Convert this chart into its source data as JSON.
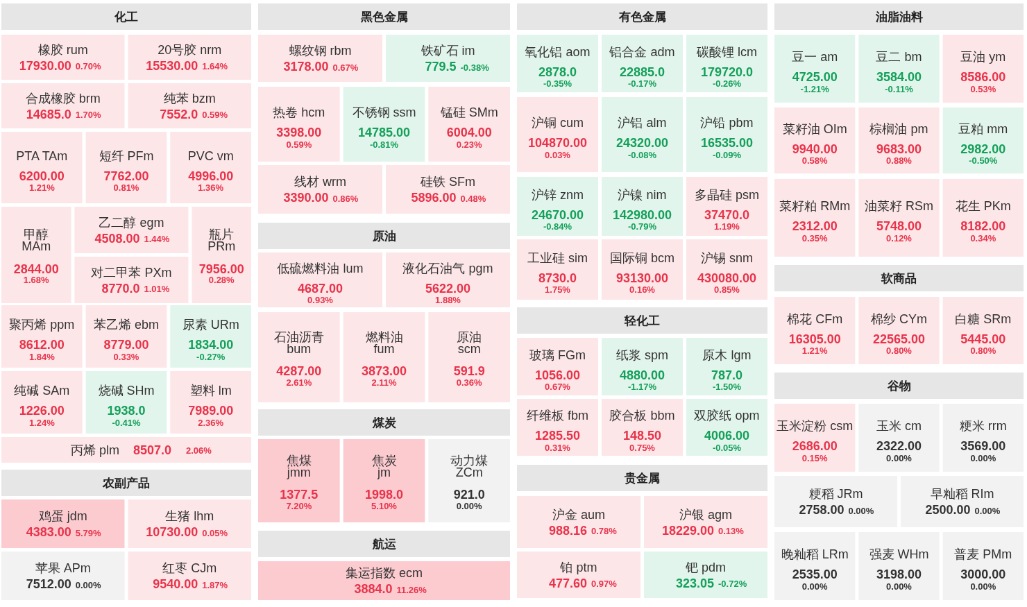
{
  "chart_data": [
    {
      "type": "other",
      "title": "化工",
      "categories": [
        "橡胶 rum",
        "20号胶 nrm",
        "合成橡胶 brm",
        "纯苯 bzm",
        "PTA TAm",
        "短纤 PFm",
        "PVC vm",
        "甲醇 MAm",
        "乙二醇 egm",
        "对二甲苯 PXm",
        "瓶片 PRm",
        "聚丙烯 ppm",
        "苯乙烯 ebm",
        "尿素 URm",
        "纯碱 SAm",
        "烧碱 SHm",
        "塑料 lm",
        "丙烯 plm"
      ],
      "series": [
        {
          "colors": [
            "#fde6e8",
            "#fde6e8",
            "#fde6e8",
            "#fde6e8",
            "#fde6e8",
            "#fde6e8",
            "#fde6e8",
            "#fde6e8",
            "#fde6e8",
            "#fde6e8",
            "#fde6e8",
            "#fde6e8",
            "#fde6e8",
            "#e2f5ec",
            "#fde6e8",
            "#e2f5ec",
            "#fde6e8",
            "#fde6e8"
          ],
          "values": [
            17930.0,
            15530.0,
            14685.0,
            7552.0,
            6200.0,
            7762.0,
            4996.0,
            2844.0,
            4508.0,
            8770.0,
            7956.0,
            8612.0,
            8779.0,
            1834.0,
            1226.0,
            1938.0,
            7989.0,
            8507.0
          ],
          "value_labels": [
            "17930.00",
            "15530.00",
            "14685.0",
            "7552.0",
            "6200.00",
            "7762.00",
            "4996.00",
            "2844.00",
            "4508.00",
            "8770.0",
            "7956.00",
            "8612.00",
            "8779.00",
            "1834.00",
            "1226.00",
            "1938.0",
            "7989.00",
            "8507.0"
          ]
        },
        {
          "colors": [
            "#e8334a",
            "#e8334a",
            "#e8334a",
            "#e8334a",
            "#e8334a",
            "#e8334a",
            "#e8334a",
            "#e8334a",
            "#e8334a",
            "#e8334a",
            "#e8334a",
            "#e8334a",
            "#e8334a",
            "#14a05a",
            "#e8334a",
            "#14a05a",
            "#e8334a",
            "#e8334a"
          ],
          "values": [
            0.7,
            1.64,
            1.7,
            0.59,
            1.21,
            0.81,
            1.36,
            1.68,
            1.44,
            1.01,
            0.28,
            1.84,
            0.33,
            -0.27,
            1.24,
            -0.41,
            2.36,
            2.06
          ],
          "value_labels": [
            "0.70%",
            "1.64%",
            "1.70%",
            "0.59%",
            "1.21%",
            "0.81%",
            "1.36%",
            "1.68%",
            "1.44%",
            "1.01%",
            "0.28%",
            "1.84%",
            "0.33%",
            "-0.27%",
            "1.24%",
            "-0.41%",
            "2.36%",
            "2.06%"
          ]
        }
      ]
    },
    {
      "type": "other",
      "title": "农副产品",
      "categories": [
        "鸡蛋 jdm",
        "生猪 lhm",
        "苹果 APm",
        "红枣 CJm"
      ],
      "series": [
        {
          "colors": [
            "#fccbd0",
            "#fde6e8",
            "#f2f2f2",
            "#fde6e8"
          ],
          "values": [
            4383.0,
            10730.0,
            7512.0,
            9540.0
          ],
          "value_labels": [
            "4383.00",
            "10730.00",
            "7512.00",
            "9540.00"
          ]
        },
        {
          "colors": [
            "#e8334a",
            "#e8334a",
            "#333333",
            "#e8334a"
          ],
          "values": [
            5.79,
            0.05,
            0.0,
            1.87
          ],
          "value_labels": [
            "5.79%",
            "0.05%",
            "0.00%",
            "1.87%"
          ]
        }
      ]
    },
    {
      "type": "other",
      "title": "黑色金属",
      "categories": [
        "螺纹钢 rbm",
        "铁矿石 im",
        "热卷 hcm",
        "不锈钢 ssm",
        "锰硅 SMm",
        "线材 wrm",
        "硅铁 SFm"
      ],
      "series": [
        {
          "colors": [
            "#fde6e8",
            "#e2f5ec",
            "#fde6e8",
            "#e2f5ec",
            "#fde6e8",
            "#fde6e8",
            "#fde6e8"
          ],
          "values": [
            3178.0,
            779.5,
            3398.0,
            14785.0,
            6004.0,
            3390.0,
            5896.0
          ],
          "value_labels": [
            "3178.00",
            "779.5",
            "3398.00",
            "14785.00",
            "6004.00",
            "3390.00",
            "5896.00"
          ]
        },
        {
          "colors": [
            "#e8334a",
            "#14a05a",
            "#e8334a",
            "#14a05a",
            "#e8334a",
            "#e8334a",
            "#e8334a"
          ],
          "values": [
            0.67,
            -0.38,
            0.59,
            -0.81,
            0.23,
            0.86,
            0.48
          ],
          "value_labels": [
            "0.67%",
            "-0.38%",
            "0.59%",
            "-0.81%",
            "0.23%",
            "0.86%",
            "0.48%"
          ]
        }
      ]
    },
    {
      "type": "other",
      "title": "原油",
      "categories": [
        "低硫燃料油 lum",
        "液化石油气 pgm",
        "石油沥青 bum",
        "燃料油 fum",
        "原油 scm"
      ],
      "series": [
        {
          "colors": [
            "#fde6e8",
            "#fde6e8",
            "#fde6e8",
            "#fde6e8",
            "#fde6e8"
          ],
          "values": [
            4687.0,
            5622.0,
            4287.0,
            3873.0,
            591.9
          ],
          "value_labels": [
            "4687.00",
            "5622.00",
            "4287.00",
            "3873.00",
            "591.9"
          ]
        },
        {
          "colors": [
            "#e8334a",
            "#e8334a",
            "#e8334a",
            "#e8334a",
            "#e8334a"
          ],
          "values": [
            0.93,
            1.88,
            2.61,
            2.11,
            0.36
          ],
          "value_labels": [
            "0.93%",
            "1.88%",
            "2.61%",
            "2.11%",
            "0.36%"
          ]
        }
      ]
    },
    {
      "type": "other",
      "title": "煤炭",
      "categories": [
        "焦煤 jmm",
        "焦炭 jm",
        "动力煤 ZCm"
      ],
      "series": [
        {
          "colors": [
            "#fccbd0",
            "#fccbd0",
            "#f2f2f2"
          ],
          "values": [
            1377.5,
            1998.0,
            921.0
          ],
          "value_labels": [
            "1377.5",
            "1998.0",
            "921.0"
          ]
        },
        {
          "colors": [
            "#e8334a",
            "#e8334a",
            "#333333"
          ],
          "values": [
            7.2,
            5.1,
            0.0
          ],
          "value_labels": [
            "7.20%",
            "5.10%",
            "0.00%"
          ]
        }
      ]
    },
    {
      "type": "other",
      "title": "航运",
      "categories": [
        "集运指数 ecm"
      ],
      "series": [
        {
          "colors": [
            "#fccbd0"
          ],
          "values": [
            3884.0
          ],
          "value_labels": [
            "3884.0"
          ]
        },
        {
          "colors": [
            "#e8334a"
          ],
          "values": [
            11.26
          ],
          "value_labels": [
            "11.26%"
          ]
        }
      ]
    },
    {
      "type": "other",
      "title": "有色金属",
      "categories": [
        "氧化铝 aom",
        "铝合金 adm",
        "碳酸锂 lcm",
        "沪铜 cum",
        "沪铝 alm",
        "沪铅 pbm",
        "沪锌 znm",
        "沪镍 nim",
        "多晶硅 psm",
        "工业硅 sim",
        "国际铜 bcm",
        "沪锡 snm"
      ],
      "series": [
        {
          "colors": [
            "#e2f5ec",
            "#e2f5ec",
            "#e2f5ec",
            "#fde6e8",
            "#e2f5ec",
            "#e2f5ec",
            "#e2f5ec",
            "#e2f5ec",
            "#fde6e8",
            "#fde6e8",
            "#fde6e8",
            "#fde6e8"
          ],
          "values": [
            2878.0,
            22885.0,
            179720.0,
            104870.0,
            24320.0,
            16535.0,
            24670.0,
            142980.0,
            37470.0,
            8730.0,
            93130.0,
            430080.0
          ],
          "value_labels": [
            "2878.0",
            "22885.0",
            "179720.0",
            "104870.00",
            "24320.00",
            "16535.00",
            "24670.00",
            "142980.00",
            "37470.0",
            "8730.0",
            "93130.00",
            "430080.00"
          ]
        },
        {
          "colors": [
            "#14a05a",
            "#14a05a",
            "#14a05a",
            "#e8334a",
            "#14a05a",
            "#14a05a",
            "#14a05a",
            "#14a05a",
            "#e8334a",
            "#e8334a",
            "#e8334a",
            "#e8334a"
          ],
          "values": [
            -0.35,
            -0.17,
            -0.26,
            0.03,
            -0.08,
            -0.09,
            -0.84,
            -0.79,
            1.19,
            1.75,
            0.16,
            0.85
          ],
          "value_labels": [
            "-0.35%",
            "-0.17%",
            "-0.26%",
            "0.03%",
            "-0.08%",
            "-0.09%",
            "-0.84%",
            "-0.79%",
            "1.19%",
            "1.75%",
            "0.16%",
            "0.85%"
          ]
        }
      ]
    },
    {
      "type": "other",
      "title": "轻化工",
      "categories": [
        "玻璃 FGm",
        "纸浆 spm",
        "原木 lgm",
        "纤维板 fbm",
        "胶合板 bbm",
        "双胶纸 opm"
      ],
      "series": [
        {
          "colors": [
            "#fde6e8",
            "#e2f5ec",
            "#e2f5ec",
            "#fde6e8",
            "#fde6e8",
            "#e2f5ec"
          ],
          "values": [
            1056.0,
            4880.0,
            787.0,
            1285.5,
            148.5,
            4006.0
          ],
          "value_labels": [
            "1056.00",
            "4880.00",
            "787.0",
            "1285.50",
            "148.50",
            "4006.00"
          ]
        },
        {
          "colors": [
            "#e8334a",
            "#14a05a",
            "#14a05a",
            "#e8334a",
            "#e8334a",
            "#14a05a"
          ],
          "values": [
            0.67,
            -1.17,
            -1.5,
            0.31,
            0.75,
            -0.05
          ],
          "value_labels": [
            "0.67%",
            "-1.17%",
            "-1.50%",
            "0.31%",
            "0.75%",
            "-0.05%"
          ]
        }
      ]
    },
    {
      "type": "other",
      "title": "贵金属",
      "categories": [
        "沪金 aum",
        "沪银 agm",
        "铂 ptm",
        "钯 pdm"
      ],
      "series": [
        {
          "colors": [
            "#fde6e8",
            "#fde6e8",
            "#fde6e8",
            "#e2f5ec"
          ],
          "values": [
            988.16,
            18229.0,
            477.6,
            323.05
          ],
          "value_labels": [
            "988.16",
            "18229.00",
            "477.60",
            "323.05"
          ]
        },
        {
          "colors": [
            "#e8334a",
            "#e8334a",
            "#e8334a",
            "#14a05a"
          ],
          "values": [
            0.78,
            0.13,
            0.97,
            -0.72
          ],
          "value_labels": [
            "0.78%",
            "0.13%",
            "0.97%",
            "-0.72%"
          ]
        }
      ]
    },
    {
      "type": "other",
      "title": "油脂油料",
      "categories": [
        "豆一 am",
        "豆二 bm",
        "豆油 ym",
        "菜籽油 OIm",
        "棕榈油 pm",
        "豆粕 mm",
        "菜籽粕 RMm",
        "油菜籽 RSm",
        "花生 PKm"
      ],
      "series": [
        {
          "colors": [
            "#e2f5ec",
            "#e2f5ec",
            "#fde6e8",
            "#fde6e8",
            "#fde6e8",
            "#e2f5ec",
            "#fde6e8",
            "#fde6e8",
            "#fde6e8"
          ],
          "values": [
            4725.0,
            3584.0,
            8586.0,
            9940.0,
            9683.0,
            2982.0,
            2312.0,
            5748.0,
            8182.0
          ],
          "value_labels": [
            "4725.00",
            "3584.00",
            "8586.00",
            "9940.00",
            "9683.00",
            "2982.00",
            "2312.00",
            "5748.00",
            "8182.00"
          ]
        },
        {
          "colors": [
            "#14a05a",
            "#14a05a",
            "#e8334a",
            "#e8334a",
            "#e8334a",
            "#14a05a",
            "#e8334a",
            "#e8334a",
            "#e8334a"
          ],
          "values": [
            -1.21,
            -0.11,
            0.53,
            0.58,
            0.88,
            -0.5,
            0.35,
            0.12,
            0.34
          ],
          "value_labels": [
            "-1.21%",
            "-0.11%",
            "0.53%",
            "0.58%",
            "0.88%",
            "-0.50%",
            "0.35%",
            "0.12%",
            "0.34%"
          ]
        }
      ]
    },
    {
      "type": "other",
      "title": "软商品",
      "categories": [
        "棉花 CFm",
        "棉纱 CYm",
        "白糖 SRm"
      ],
      "series": [
        {
          "colors": [
            "#fde6e8",
            "#fde6e8",
            "#fde6e8"
          ],
          "values": [
            16305.0,
            22565.0,
            5445.0
          ],
          "value_labels": [
            "16305.00",
            "22565.00",
            "5445.00"
          ]
        },
        {
          "colors": [
            "#e8334a",
            "#e8334a",
            "#e8334a"
          ],
          "values": [
            1.21,
            0.8,
            0.8
          ],
          "value_labels": [
            "1.21%",
            "0.80%",
            "0.80%"
          ]
        }
      ]
    },
    {
      "type": "other",
      "title": "谷物",
      "categories": [
        "玉米淀粉 csm",
        "玉米 cm",
        "粳米 rrm",
        "粳稻 JRm",
        "早籼稻 RIm",
        "晚籼稻 LRm",
        "强麦 WHm",
        "普麦 PMm"
      ],
      "series": [
        {
          "colors": [
            "#fde6e8",
            "#f2f2f2",
            "#f2f2f2",
            "#f2f2f2",
            "#f2f2f2",
            "#f2f2f2",
            "#f2f2f2",
            "#f2f2f2"
          ],
          "values": [
            2686.0,
            2322.0,
            3569.0,
            2758.0,
            2500.0,
            2535.0,
            3198.0,
            3000.0
          ],
          "value_labels": [
            "2686.00",
            "2322.00",
            "3569.00",
            "2758.00",
            "2500.00",
            "2535.00",
            "3198.00",
            "3000.00"
          ]
        },
        {
          "colors": [
            "#e8334a",
            "#333333",
            "#333333",
            "#333333",
            "#333333",
            "#333333",
            "#333333",
            "#333333"
          ],
          "values": [
            0.15,
            0.0,
            0.0,
            0.0,
            0.0,
            0.0,
            0.0,
            0.0
          ],
          "value_labels": [
            "0.15%",
            "0.00%",
            "0.00%",
            "0.00%",
            "0.00%",
            "0.00%",
            "0.00%",
            "0.00%"
          ]
        }
      ]
    }
  ]
}
